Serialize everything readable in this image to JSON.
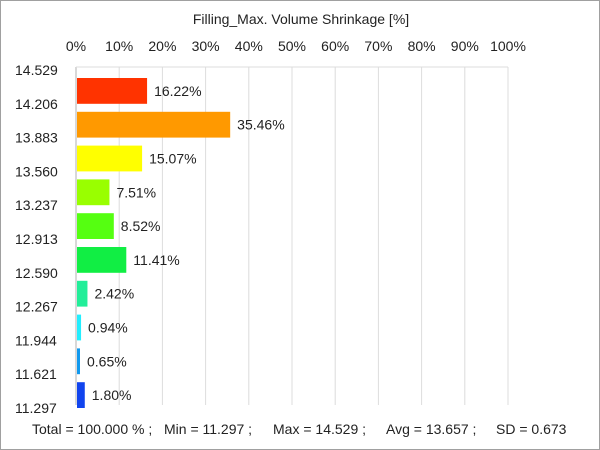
{
  "chart_data": {
    "type": "bar",
    "orientation": "horizontal",
    "title": "Filling_Max. Volume Shrinkage [%]",
    "xlabel": "",
    "ylabel": "",
    "xlim": [
      0,
      100
    ],
    "x_ticks": [
      "0%",
      "10%",
      "20%",
      "30%",
      "40%",
      "50%",
      "60%",
      "70%",
      "80%",
      "90%",
      "100%"
    ],
    "y_ticks": [
      "14.529",
      "14.206",
      "13.883",
      "13.560",
      "13.237",
      "12.913",
      "12.590",
      "12.267",
      "11.944",
      "11.621",
      "11.297"
    ],
    "grid": true,
    "legend": "none",
    "bars": [
      {
        "value": 16.22,
        "label": "16.22%",
        "color": "#ff3300"
      },
      {
        "value": 35.46,
        "label": "35.46%",
        "color": "#ff9900"
      },
      {
        "value": 15.07,
        "label": "15.07%",
        "color": "#ffff00"
      },
      {
        "value": 7.51,
        "label": "7.51%",
        "color": "#99ff00"
      },
      {
        "value": 8.52,
        "label": "8.52%",
        "color": "#55ff11"
      },
      {
        "value": 11.41,
        "label": "11.41%",
        "color": "#11ee44"
      },
      {
        "value": 2.42,
        "label": "2.42%",
        "color": "#22ee99"
      },
      {
        "value": 0.94,
        "label": "0.94%",
        "color": "#22eeff"
      },
      {
        "value": 0.65,
        "label": "0.65%",
        "color": "#1199ee"
      },
      {
        "value": 1.8,
        "label": "1.80%",
        "color": "#1144ee"
      }
    ]
  },
  "footer": {
    "total": "Total = 100.000 % ;",
    "min": "Min = 11.297 ;",
    "max": "Max = 14.529 ;",
    "avg": "Avg = 13.657 ;",
    "sd": "SD = 0.673"
  }
}
